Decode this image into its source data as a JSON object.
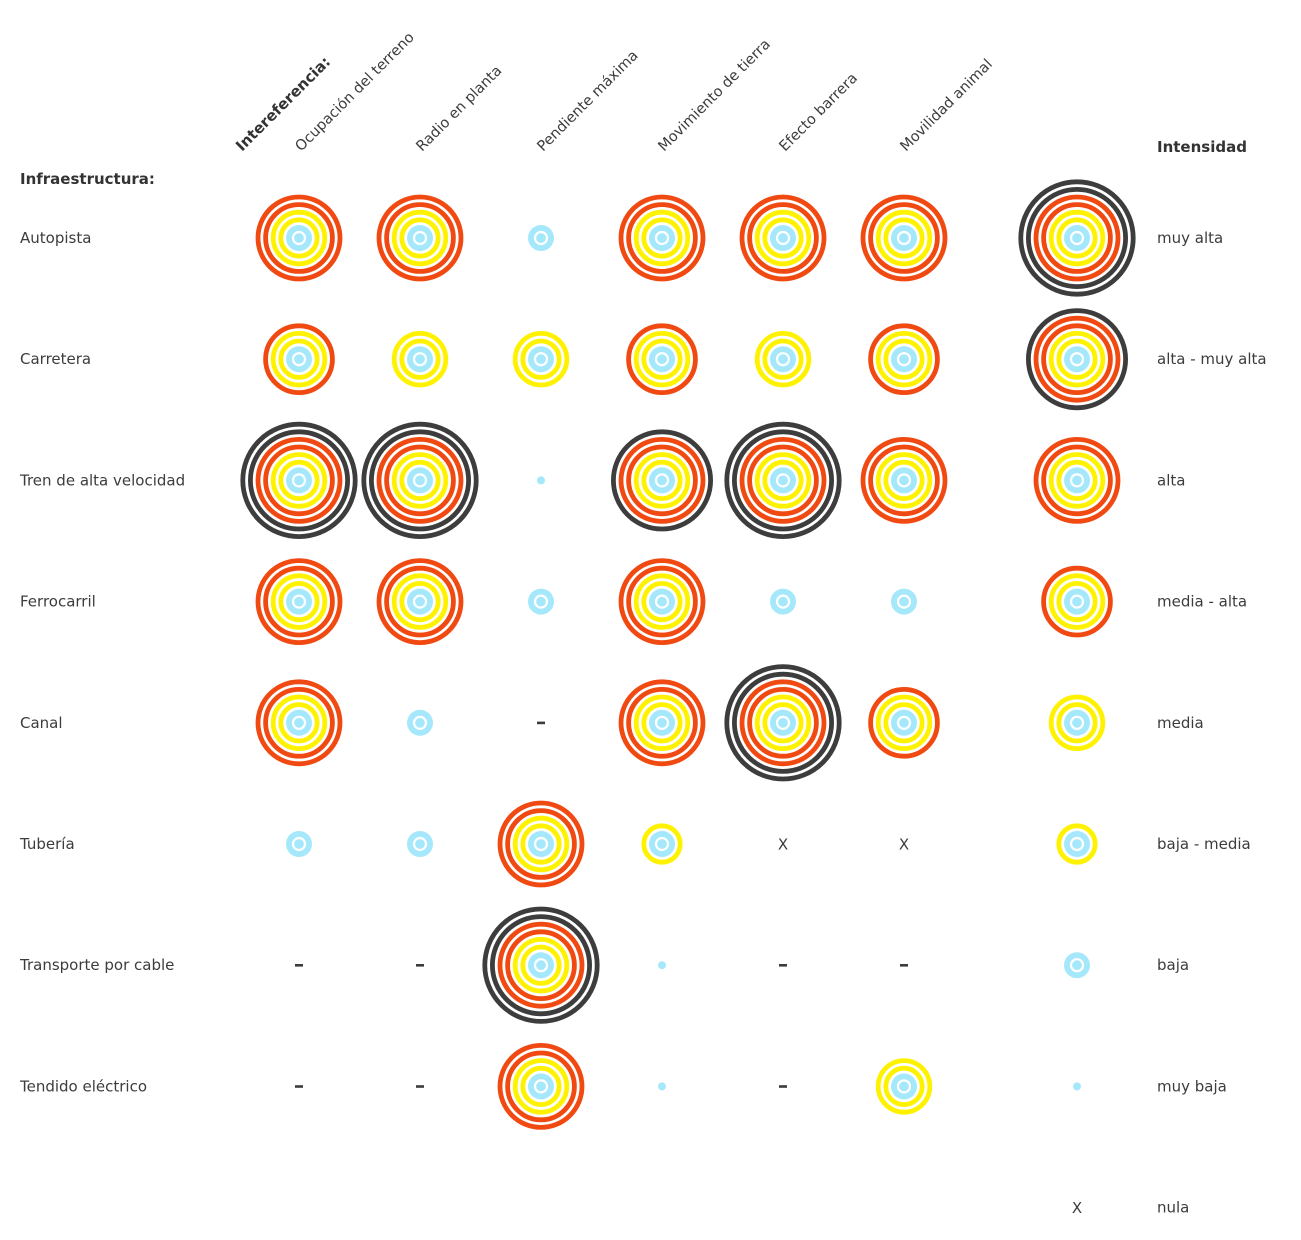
{
  "chart_data": {
    "type": "heatmap",
    "title": "",
    "row_axis_title": "Infraestructura:",
    "column_axis_title": "Intereferencia:",
    "legend_title": "Intensidad",
    "legend_placement": "right",
    "columns": [
      "Ocupación del terreno",
      "Radio en planta",
      "Pendiente máxima",
      "Movimiento de tierra",
      "Efecto barrera",
      "Movilidad animal"
    ],
    "levels": [
      {
        "key": "muy_alta",
        "label": "muy alta",
        "value": 8
      },
      {
        "key": "alta_muy_alta",
        "label": "alta - muy alta",
        "value": 7
      },
      {
        "key": "alta",
        "label": "alta",
        "value": 6
      },
      {
        "key": "media_alta",
        "label": "media - alta",
        "value": 5
      },
      {
        "key": "media",
        "label": "media",
        "value": 4
      },
      {
        "key": "baja_media",
        "label": "baja - media",
        "value": 3
      },
      {
        "key": "baja",
        "label": "baja",
        "value": 2
      },
      {
        "key": "muy_baja",
        "label": "muy baja",
        "value": 1
      },
      {
        "key": "nula",
        "label": "nula",
        "value": 0,
        "symbol": "X"
      }
    ],
    "no_data_symbol": "-",
    "rows": [
      {
        "name": "Autopista",
        "values": [
          "alta",
          "alta",
          "baja",
          "alta",
          "alta",
          "alta"
        ]
      },
      {
        "name": "Carretera",
        "values": [
          "media - alta",
          "media",
          "media",
          "media - alta",
          "media",
          "media - alta"
        ]
      },
      {
        "name": "Tren de alta velocidad",
        "values": [
          "muy alta",
          "muy alta",
          "muy baja",
          "alta - muy alta",
          "muy alta",
          "alta"
        ]
      },
      {
        "name": "Ferrocarril",
        "values": [
          "alta",
          "alta",
          "baja",
          "alta",
          "baja",
          "baja"
        ]
      },
      {
        "name": "Canal",
        "values": [
          "alta",
          "baja",
          "-",
          "alta",
          "muy alta",
          "media - alta"
        ]
      },
      {
        "name": "Tubería",
        "values": [
          "baja",
          "baja",
          "alta",
          "baja - media",
          "nula",
          "nula"
        ]
      },
      {
        "name": "Transporte por cable",
        "values": [
          "-",
          "-",
          "muy alta",
          "muy baja",
          "-",
          "-"
        ]
      },
      {
        "name": "Tendido eléctrico",
        "values": [
          "-",
          "-",
          "alta",
          "muy baja",
          "-",
          "media"
        ]
      }
    ],
    "colors": {
      "light_blue": "#a6e8fb",
      "yellow": "#fff200",
      "orange": "#f04a12",
      "dark": "#3d3d3d",
      "text": "#3c3c3c"
    }
  }
}
